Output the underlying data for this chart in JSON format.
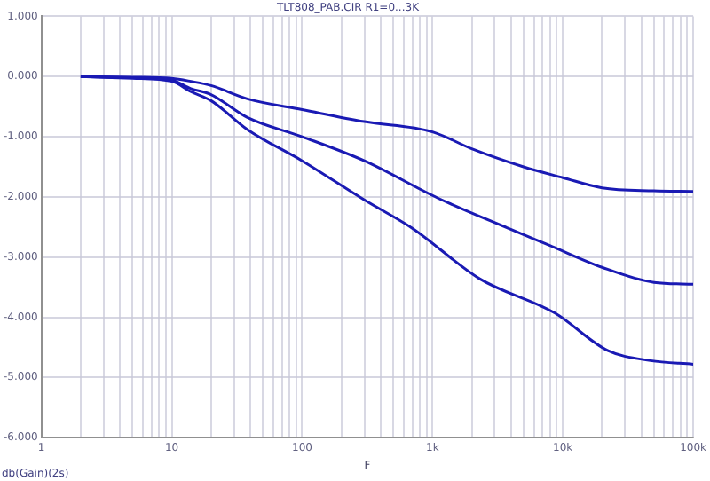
{
  "chart_data": {
    "type": "line",
    "title": "TLT808_PAB.CIR R1=0...3K",
    "xlabel": "F",
    "annotations": [
      "db(Gain)(2s)"
    ],
    "log": "x",
    "grid": true,
    "legend": false,
    "marker": "none",
    "line_style": "solid",
    "xlim": [
      1,
      100000
    ],
    "ylim": [
      -6,
      1
    ],
    "xticks": [
      1,
      {
        "value": 2,
        "label": null
      },
      {
        "value": 3,
        "label": null
      },
      {
        "value": 4,
        "label": null
      },
      {
        "value": 5,
        "label": null
      },
      {
        "value": 6,
        "label": null
      },
      {
        "value": 7,
        "label": null
      },
      {
        "value": 8,
        "label": null
      },
      {
        "value": 9,
        "label": null
      },
      10,
      {
        "value": 20,
        "label": null
      },
      {
        "value": 30,
        "label": null
      },
      {
        "value": 40,
        "label": null
      },
      {
        "value": 50,
        "label": null
      },
      {
        "value": 60,
        "label": null
      },
      {
        "value": 70,
        "label": null
      },
      {
        "value": 80,
        "label": null
      },
      {
        "value": 90,
        "label": null
      },
      100,
      {
        "value": 200,
        "label": null
      },
      {
        "value": 300,
        "label": null
      },
      {
        "value": 400,
        "label": null
      },
      {
        "value": 500,
        "label": null
      },
      {
        "value": 600,
        "label": null
      },
      {
        "value": 700,
        "label": null
      },
      {
        "value": 800,
        "label": null
      },
      {
        "value": 900,
        "label": null
      },
      {
        "value": 1000,
        "label": "1k"
      },
      {
        "value": 2000,
        "label": null
      },
      {
        "value": 3000,
        "label": null
      },
      {
        "value": 4000,
        "label": null
      },
      {
        "value": 5000,
        "label": null
      },
      {
        "value": 6000,
        "label": null
      },
      {
        "value": 7000,
        "label": null
      },
      {
        "value": 8000,
        "label": null
      },
      {
        "value": 9000,
        "label": null
      },
      {
        "value": 10000,
        "label": "10k"
      },
      {
        "value": 20000,
        "label": null
      },
      {
        "value": 30000,
        "label": null
      },
      {
        "value": 40000,
        "label": null
      },
      {
        "value": 50000,
        "label": null
      },
      {
        "value": 60000,
        "label": null
      },
      {
        "value": 70000,
        "label": null
      },
      {
        "value": 80000,
        "label": null
      },
      {
        "value": 90000,
        "label": null
      },
      {
        "value": 100000,
        "label": "100k"
      }
    ],
    "yticks": [
      {
        "value": 1,
        "label": "1.000"
      },
      {
        "value": 0,
        "label": "0.000"
      },
      {
        "value": -1,
        "label": "-1.000"
      },
      {
        "value": -2,
        "label": "-2.000"
      },
      {
        "value": -3,
        "label": "-3.000"
      },
      {
        "value": -4,
        "label": "-4.000"
      },
      {
        "value": -5,
        "label": "-5.000"
      },
      {
        "value": -6,
        "label": "-6.000"
      }
    ],
    "series": [
      {
        "color": "#1a1ab4",
        "x": [
          2,
          5,
          10,
          14,
          20,
          38,
          100,
          300,
          1000,
          2000,
          5000,
          10000,
          20000,
          50000,
          100000
        ],
        "values": [
          0,
          -0.01,
          -0.03,
          -0.08,
          -0.15,
          -0.37,
          -0.55,
          -0.75,
          -0.92,
          -1.2,
          -1.5,
          -1.68,
          -1.85,
          -1.9,
          -1.91
        ]
      },
      {
        "color": "#1a1ab4",
        "x": [
          2,
          5,
          10,
          14,
          20,
          38,
          100,
          300,
          1100,
          3800,
          7800,
          20000,
          50000,
          100000
        ],
        "values": [
          0,
          -0.02,
          -0.06,
          -0.2,
          -0.3,
          -0.68,
          -1.0,
          -1.4,
          -2.02,
          -2.52,
          -2.8,
          -3.17,
          -3.42,
          -3.45
        ]
      },
      {
        "color": "#1a1ab4",
        "x": [
          2,
          5,
          10,
          14,
          20,
          38,
          100,
          300,
          700,
          2300,
          8700,
          22000,
          47000,
          100000
        ],
        "values": [
          0,
          -0.03,
          -0.08,
          -0.25,
          -0.4,
          -0.88,
          -1.4,
          -2.05,
          -2.52,
          -3.36,
          -3.93,
          -4.55,
          -4.72,
          -4.78
        ]
      }
    ]
  }
}
